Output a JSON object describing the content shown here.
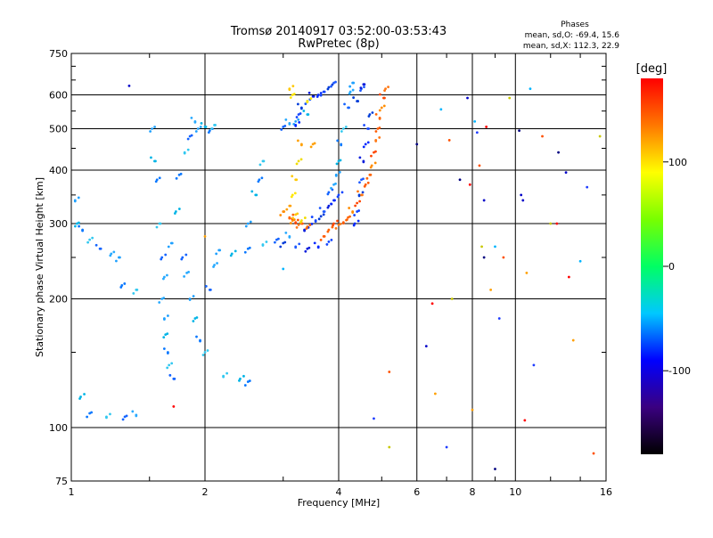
{
  "chart_data": {
    "type": "scatter",
    "title": "Tromsø 20140917 03:52:00-03:53:43",
    "subtitle": "RwPretec (8p)",
    "xlabel": "Frequency [MHz]",
    "ylabel": "Stationary phase Virtual Height [km]",
    "xscale": "log",
    "yscale": "log",
    "xlim": [
      1,
      16
    ],
    "ylim": [
      75,
      750
    ],
    "xticks": [
      "1",
      "2",
      "4",
      "6",
      "8",
      "10",
      "16"
    ],
    "xtick_values": [
      1,
      2,
      4,
      6,
      8,
      10,
      16
    ],
    "yticks": [
      "75",
      "100",
      "200",
      "300",
      "400",
      "500",
      "600",
      "750"
    ],
    "ytick_values": [
      75,
      100,
      200,
      300,
      400,
      500,
      600,
      750
    ],
    "grid": true,
    "phases_label": "Phases",
    "stats": [
      "mean, sd,O: -69.4, 15.6",
      "mean, sd,X: 112.3, 22.9"
    ],
    "colorbar": {
      "label": "[deg]",
      "range": [
        -180,
        180
      ],
      "ticks": [
        "100",
        "0",
        "-100"
      ],
      "tick_values": [
        100,
        0,
        -100
      ],
      "colors": [
        "#000000",
        "#3a0080",
        "#0000ff",
        "#00c8ff",
        "#00ff64",
        "#78ff00",
        "#ffff00",
        "#ff7800",
        "#ff0000"
      ]
    },
    "series": [
      {
        "values": [
          [
            1.02,
            340
          ],
          [
            1.03,
            300
          ],
          [
            1.06,
            290
          ],
          [
            1.1,
            275
          ],
          [
            1.16,
            262
          ],
          [
            1.23,
            255
          ],
          [
            1.28,
            250
          ],
          [
            1.05,
            118
          ],
          [
            1.1,
            108
          ],
          [
            1.2,
            106
          ],
          [
            1.32,
            106
          ],
          [
            1.4,
            107
          ],
          [
            1.52,
            500
          ],
          [
            1.54,
            420
          ],
          [
            1.56,
            380
          ],
          [
            1.58,
            300
          ],
          [
            1.6,
            250
          ],
          [
            1.6,
            200
          ],
          [
            1.62,
            180
          ],
          [
            1.63,
            165
          ],
          [
            1.65,
            150
          ],
          [
            1.66,
            140
          ],
          [
            1.7,
            130
          ],
          [
            1.62,
            225
          ],
          [
            1.68,
            270
          ],
          [
            1.72,
            320
          ],
          [
            1.75,
            390
          ],
          [
            1.8,
            440
          ],
          [
            1.85,
            480
          ],
          [
            1.9,
            520
          ],
          [
            1.93,
            500
          ],
          [
            2.0,
            505
          ],
          [
            2.05,
            495
          ],
          [
            2.1,
            510
          ],
          [
            1.78,
            250
          ],
          [
            1.82,
            230
          ],
          [
            1.85,
            200
          ],
          [
            1.9,
            180
          ],
          [
            1.95,
            160
          ],
          [
            2.0,
            150
          ],
          [
            2.05,
            210
          ],
          [
            2.1,
            240
          ],
          [
            2.15,
            260
          ],
          [
            2.3,
            255
          ],
          [
            2.5,
            262
          ],
          [
            2.7,
            268
          ],
          [
            2.9,
            275
          ],
          [
            3.1,
            280
          ],
          [
            2.5,
            300
          ],
          [
            2.6,
            350
          ],
          [
            2.65,
            380
          ],
          [
            2.7,
            420
          ],
          [
            3.8,
            355
          ],
          [
            3.9,
            370
          ],
          [
            3.95,
            390
          ],
          [
            4.0,
            420
          ],
          [
            4.05,
            460
          ],
          [
            4.1,
            500
          ],
          [
            4.2,
            560
          ],
          [
            4.25,
            610
          ],
          [
            4.3,
            640
          ],
          [
            2.4,
            130
          ],
          [
            2.5,
            128
          ],
          [
            2.2,
            132
          ],
          [
            3.0,
            505
          ],
          [
            3.1,
            515
          ],
          [
            3.2,
            520
          ],
          [
            3.4,
            540
          ],
          [
            1.3,
            215
          ],
          [
            1.4,
            210
          ]
        ],
        "color_hint": "cyan-blue"
      },
      {
        "values": [
          [
            3.2,
            510
          ],
          [
            3.25,
            540
          ],
          [
            3.3,
            560
          ],
          [
            3.4,
            580
          ],
          [
            3.5,
            595
          ],
          [
            3.6,
            600
          ],
          [
            3.7,
            610
          ],
          [
            3.8,
            625
          ],
          [
            3.9,
            640
          ],
          [
            3.35,
            290
          ],
          [
            3.45,
            298
          ],
          [
            3.55,
            305
          ],
          [
            3.65,
            312
          ],
          [
            3.7,
            320
          ],
          [
            3.8,
            330
          ],
          [
            3.9,
            340
          ],
          [
            4.0,
            350
          ],
          [
            3.0,
            270
          ],
          [
            3.2,
            265
          ],
          [
            3.4,
            262
          ],
          [
            3.6,
            265
          ],
          [
            3.8,
            272
          ],
          [
            4.4,
            580
          ],
          [
            4.5,
            620
          ],
          [
            4.55,
            635
          ],
          [
            4.35,
            300
          ],
          [
            4.4,
            320
          ],
          [
            4.45,
            350
          ],
          [
            4.5,
            380
          ],
          [
            4.55,
            420
          ],
          [
            4.6,
            460
          ],
          [
            4.65,
            500
          ],
          [
            4.7,
            540
          ]
        ],
        "color_hint": "blue"
      },
      {
        "values": [
          [
            3.1,
            310
          ],
          [
            3.15,
            305
          ],
          [
            3.2,
            302
          ],
          [
            3.25,
            298
          ],
          [
            3.3,
            300
          ],
          [
            3.4,
            295
          ],
          [
            3.0,
            320
          ],
          [
            3.9,
            300
          ],
          [
            4.0,
            298
          ],
          [
            4.1,
            302
          ],
          [
            4.2,
            310
          ],
          [
            4.3,
            320
          ],
          [
            4.4,
            335
          ],
          [
            4.5,
            350
          ],
          [
            4.6,
            370
          ],
          [
            4.7,
            390
          ],
          [
            4.75,
            410
          ],
          [
            4.8,
            440
          ],
          [
            4.85,
            470
          ],
          [
            4.9,
            500
          ],
          [
            4.95,
            530
          ],
          [
            5.0,
            560
          ],
          [
            5.05,
            590
          ],
          [
            5.1,
            620
          ],
          [
            3.7,
            280
          ],
          [
            3.8,
            290
          ]
        ],
        "color_hint": "orange-red"
      },
      {
        "values": [
          [
            3.1,
            620
          ],
          [
            3.15,
            600
          ],
          [
            3.3,
            460
          ],
          [
            3.25,
            420
          ],
          [
            3.2,
            380
          ],
          [
            3.15,
            350
          ],
          [
            3.1,
            330
          ],
          [
            3.3,
            305
          ],
          [
            3.2,
            315
          ],
          [
            3.4,
            580
          ],
          [
            3.5,
            460
          ]
        ],
        "color_hint": "yellow"
      },
      {
        "values": [
          [
            1.35,
            630
          ],
          [
            1.7,
            112
          ],
          [
            2.0,
            280
          ],
          [
            3.0,
            235
          ],
          [
            4.8,
            105
          ],
          [
            5.2,
            135
          ],
          [
            5.2,
            90
          ],
          [
            6.0,
            460
          ],
          [
            6.3,
            155
          ],
          [
            6.5,
            195
          ],
          [
            6.6,
            120
          ],
          [
            6.8,
            555
          ],
          [
            7.0,
            90
          ],
          [
            7.1,
            470
          ],
          [
            7.2,
            200
          ],
          [
            7.5,
            380
          ],
          [
            7.8,
            590
          ],
          [
            7.9,
            370
          ],
          [
            8.0,
            110
          ],
          [
            8.1,
            520
          ],
          [
            8.2,
            490
          ],
          [
            8.3,
            410
          ],
          [
            8.4,
            265
          ],
          [
            8.5,
            250
          ],
          [
            8.5,
            340
          ],
          [
            8.6,
            505
          ],
          [
            8.8,
            210
          ],
          [
            9.0,
            265
          ],
          [
            9.2,
            180
          ],
          [
            9.4,
            250
          ],
          [
            9.7,
            590
          ],
          [
            10.2,
            495
          ],
          [
            10.3,
            350
          ],
          [
            10.5,
            104
          ],
          [
            10.6,
            230
          ],
          [
            10.8,
            620
          ],
          [
            11.0,
            140
          ],
          [
            11.5,
            480
          ],
          [
            12.0,
            300
          ],
          [
            12.5,
            440
          ],
          [
            13.0,
            395
          ],
          [
            13.2,
            225
          ],
          [
            13.5,
            160
          ],
          [
            14.0,
            245
          ],
          [
            14.5,
            365
          ],
          [
            15.0,
            87
          ],
          [
            15.5,
            480
          ],
          [
            9.0,
            80
          ],
          [
            10.4,
            340
          ],
          [
            12.4,
            300
          ]
        ],
        "color_hint": "scattered"
      }
    ]
  }
}
